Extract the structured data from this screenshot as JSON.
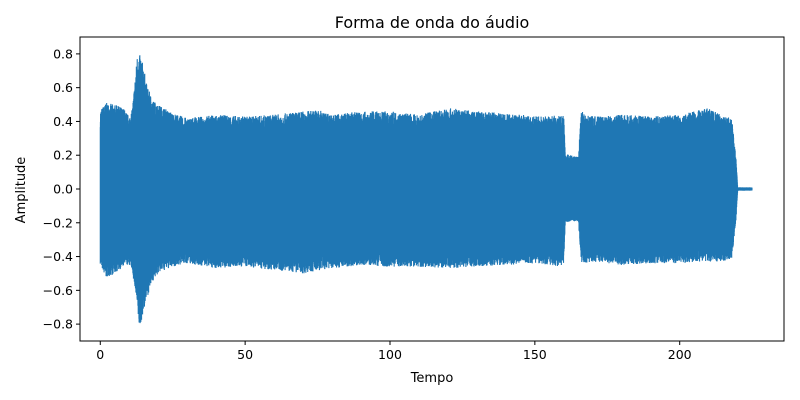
{
  "chart_data": {
    "type": "line",
    "title": "Forma de onda do áudio",
    "xlabel": "Tempo",
    "ylabel": "Amplitude",
    "xlim": [
      -7,
      236
    ],
    "ylim": [
      -0.9,
      0.9
    ],
    "xticks": [
      0,
      50,
      100,
      150,
      200
    ],
    "yticks": [
      -0.8,
      -0.6,
      -0.4,
      -0.2,
      0.0,
      0.2,
      0.4,
      0.6,
      0.8
    ],
    "xtick_labels": [
      "0",
      "50",
      "100",
      "150",
      "200"
    ],
    "ytick_labels": [
      "−0.8",
      "−0.6",
      "−0.4",
      "−0.2",
      "0.0",
      "0.2",
      "0.4",
      "0.6",
      "0.8"
    ],
    "grid": false,
    "color": "#1f77b4",
    "series": [
      {
        "envelope_upper": [
          [
            0,
            0.47
          ],
          [
            2,
            0.51
          ],
          [
            5,
            0.5
          ],
          [
            8,
            0.48
          ],
          [
            10,
            0.43
          ],
          [
            11,
            0.47
          ],
          [
            12,
            0.65
          ],
          [
            12.8,
            0.8
          ],
          [
            14,
            0.79
          ],
          [
            15,
            0.72
          ],
          [
            16,
            0.62
          ],
          [
            18,
            0.53
          ],
          [
            20,
            0.5
          ],
          [
            25,
            0.45
          ],
          [
            30,
            0.42
          ],
          [
            40,
            0.44
          ],
          [
            50,
            0.43
          ],
          [
            60,
            0.44
          ],
          [
            70,
            0.46
          ],
          [
            75,
            0.47
          ],
          [
            80,
            0.44
          ],
          [
            90,
            0.46
          ],
          [
            100,
            0.46
          ],
          [
            110,
            0.44
          ],
          [
            120,
            0.48
          ],
          [
            130,
            0.46
          ],
          [
            140,
            0.45
          ],
          [
            150,
            0.43
          ],
          [
            155,
            0.43
          ],
          [
            159,
            0.45
          ],
          [
            160,
            0.43
          ],
          [
            160.5,
            0.21
          ],
          [
            165,
            0.19
          ],
          [
            166,
            0.46
          ],
          [
            170,
            0.43
          ],
          [
            180,
            0.44
          ],
          [
            190,
            0.43
          ],
          [
            200,
            0.44
          ],
          [
            210,
            0.48
          ],
          [
            215,
            0.43
          ],
          [
            218,
            0.42
          ],
          [
            219.5,
            0.17
          ],
          [
            220,
            0.01
          ],
          [
            225,
            0.01
          ]
        ],
        "envelope_lower": [
          [
            0,
            -0.45
          ],
          [
            2,
            -0.53
          ],
          [
            5,
            -0.5
          ],
          [
            8,
            -0.46
          ],
          [
            10,
            -0.45
          ],
          [
            11,
            -0.48
          ],
          [
            12,
            -0.6
          ],
          [
            12.8,
            -0.72
          ],
          [
            13.5,
            -0.83
          ],
          [
            14.5,
            -0.76
          ],
          [
            16,
            -0.65
          ],
          [
            18,
            -0.55
          ],
          [
            20,
            -0.5
          ],
          [
            25,
            -0.46
          ],
          [
            30,
            -0.44
          ],
          [
            40,
            -0.47
          ],
          [
            50,
            -0.46
          ],
          [
            60,
            -0.48
          ],
          [
            70,
            -0.5
          ],
          [
            80,
            -0.47
          ],
          [
            90,
            -0.45
          ],
          [
            100,
            -0.46
          ],
          [
            110,
            -0.46
          ],
          [
            120,
            -0.47
          ],
          [
            130,
            -0.46
          ],
          [
            140,
            -0.45
          ],
          [
            150,
            -0.44
          ],
          [
            155,
            -0.45
          ],
          [
            159,
            -0.46
          ],
          [
            160,
            -0.44
          ],
          [
            160.5,
            -0.2
          ],
          [
            165,
            -0.19
          ],
          [
            166,
            -0.44
          ],
          [
            170,
            -0.43
          ],
          [
            180,
            -0.45
          ],
          [
            190,
            -0.44
          ],
          [
            200,
            -0.44
          ],
          [
            210,
            -0.43
          ],
          [
            215,
            -0.43
          ],
          [
            218,
            -0.41
          ],
          [
            219.5,
            -0.17
          ],
          [
            220,
            -0.01
          ],
          [
            225,
            -0.01
          ]
        ]
      }
    ]
  }
}
